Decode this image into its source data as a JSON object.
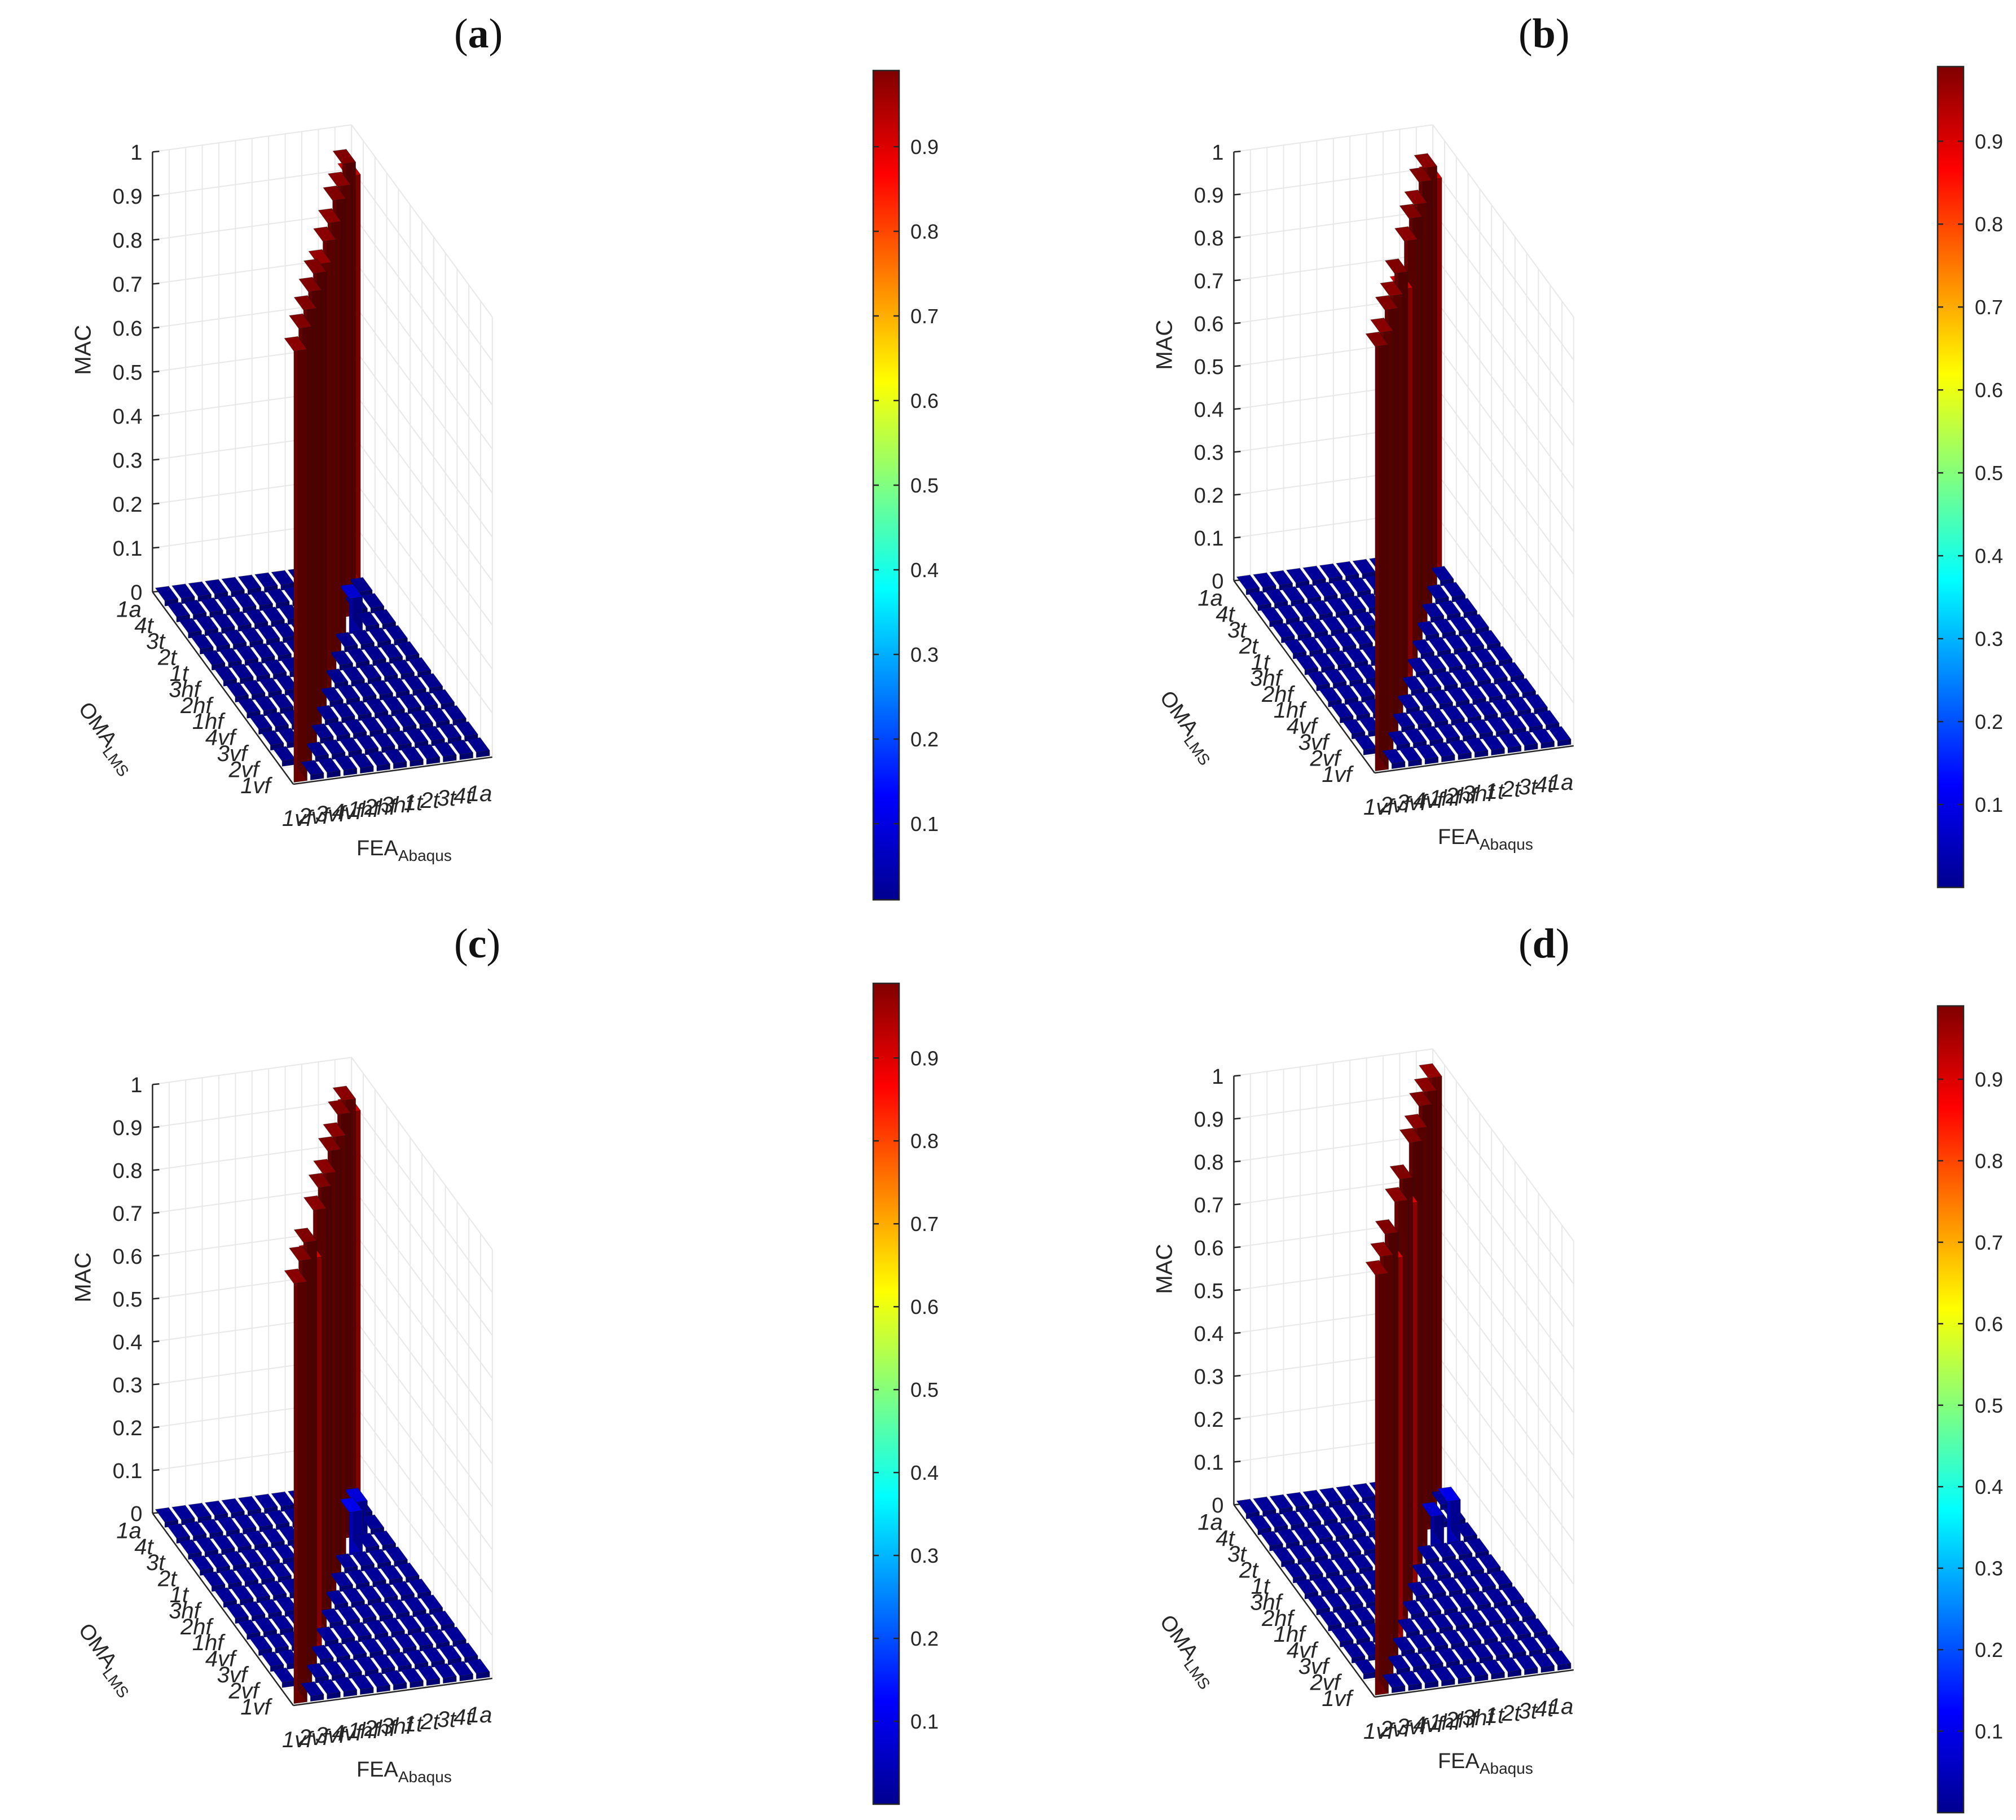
{
  "figure": {
    "panels": [
      "a",
      "b",
      "c",
      "d"
    ]
  },
  "colormap": [
    "#00008f",
    "#0000ff",
    "#0080ff",
    "#00ffff",
    "#80ff80",
    "#ffff00",
    "#ff8000",
    "#ff0000",
    "#800000"
  ],
  "chart_data": [
    {
      "panel": "a",
      "label": "a",
      "type": "bar3d",
      "zlabel": "MAC",
      "xlabel": "FEA",
      "xlabel_sub": "Abaqus",
      "ylabel": "OMA",
      "ylabel_sub": "LMS",
      "x_categories": [
        "1vf",
        "2vf",
        "3vf",
        "4vf",
        "1hf",
        "2hf",
        "3hf",
        "1t",
        "2t",
        "3t",
        "4t",
        "1a"
      ],
      "y_categories": [
        "1vf",
        "2vf",
        "3vf",
        "4vf",
        "1hf",
        "2hf",
        "3hf",
        "1t",
        "2t",
        "3t",
        "4t",
        "1a"
      ],
      "zlim": [
        0,
        1
      ],
      "zticks": [
        "0",
        "0.1",
        "0.2",
        "0.3",
        "0.4",
        "0.5",
        "0.6",
        "0.7",
        "0.8",
        "0.9",
        "1"
      ],
      "colorbar_ticks": [
        "0.1",
        "0.2",
        "0.3",
        "0.4",
        "0.5",
        "0.6",
        "0.7",
        "0.8",
        "0.9"
      ],
      "colorbar_range": [
        0.01,
        0.99
      ],
      "diagonal": [
        0.98,
        0.99,
        0.99,
        0.99,
        0.99,
        0.97,
        0.98,
        0.98,
        0.99,
        0.98,
        0.99,
        0.92
      ],
      "offdiag": [
        {
          "i": 8,
          "j": 9,
          "v": 0.08
        },
        {
          "i": 9,
          "j": 8,
          "v": 0.08
        }
      ]
    },
    {
      "panel": "b",
      "label": "b",
      "type": "bar3d",
      "zlabel": "MAC",
      "xlabel": "FEA",
      "xlabel_sub": "Abaqus",
      "ylabel": "OMA",
      "ylabel_sub": "LMS",
      "x_categories": [
        "1vf",
        "2vf",
        "3vf",
        "4vf",
        "1hf",
        "2hf",
        "3hf",
        "1t",
        "2t",
        "3t",
        "4t",
        "1a"
      ],
      "y_categories": [
        "1vf",
        "2vf",
        "3vf",
        "4vf",
        "1hf",
        "2hf",
        "3hf",
        "1t",
        "2t",
        "3t",
        "4t",
        "1a"
      ],
      "zlim": [
        0,
        1
      ],
      "zticks": [
        "0",
        "0.1",
        "0.2",
        "0.3",
        "0.4",
        "0.5",
        "0.6",
        "0.7",
        "0.8",
        "0.9",
        "1"
      ],
      "colorbar_ticks": [
        "0.1",
        "0.2",
        "0.3",
        "0.4",
        "0.5",
        "0.6",
        "0.7",
        "0.8",
        "0.9"
      ],
      "colorbar_range": [
        0.0,
        0.99
      ],
      "diagonal": [
        0.99,
        0.98,
        0.99,
        0.98,
        0.99,
        0.91,
        0.98,
        0.99,
        0.98,
        0.99,
        0.98,
        0.91
      ],
      "offdiag": []
    },
    {
      "panel": "c",
      "label": "c",
      "type": "bar3d",
      "zlabel": "MAC",
      "xlabel": "FEA",
      "xlabel_sub": "Abaqus",
      "ylabel": "OMA",
      "ylabel_sub": "LMS",
      "x_categories": [
        "1vf",
        "2vf",
        "3vf",
        "4vf",
        "1hf",
        "2hf",
        "3hf",
        "1t",
        "2t",
        "3t",
        "4t",
        "1a"
      ],
      "y_categories": [
        "1vf",
        "2vf",
        "3vf",
        "4vf",
        "1hf",
        "2hf",
        "3hf",
        "1t",
        "2t",
        "3t",
        "4t",
        "1a"
      ],
      "zlim": [
        0,
        1
      ],
      "zticks": [
        "0",
        "0.1",
        "0.2",
        "0.3",
        "0.4",
        "0.5",
        "0.6",
        "0.7",
        "0.8",
        "0.9",
        "1"
      ],
      "colorbar_ticks": [
        "0.1",
        "0.2",
        "0.3",
        "0.4",
        "0.5",
        "0.6",
        "0.7",
        "0.8",
        "0.9"
      ],
      "colorbar_range": [
        0.0,
        0.99
      ],
      "diagonal": [
        0.98,
        0.99,
        0.99,
        0.91,
        0.98,
        0.99,
        0.98,
        0.99,
        0.98,
        0.99,
        0.98,
        0.91
      ],
      "offdiag": [
        {
          "i": 8,
          "j": 9,
          "v": 0.12
        },
        {
          "i": 9,
          "j": 8,
          "v": 0.1
        },
        {
          "i": 10,
          "j": 9,
          "v": 0.08
        }
      ]
    },
    {
      "panel": "d",
      "label": "d",
      "type": "bar3d",
      "zlabel": "MAC",
      "xlabel": "FEA",
      "xlabel_sub": "Abaqus",
      "ylabel": "OMA",
      "ylabel_sub": "LMS",
      "x_categories": [
        "1vf",
        "2vf",
        "3vf",
        "4vf",
        "1hf",
        "2hf",
        "3hf",
        "1t",
        "2t",
        "3t",
        "4t",
        "1a"
      ],
      "y_categories": [
        "1vf",
        "2vf",
        "3vf",
        "4vf",
        "1hf",
        "2hf",
        "3hf",
        "1t",
        "2t",
        "3t",
        "4t",
        "1a"
      ],
      "zlim": [
        0,
        1
      ],
      "zticks": [
        "0",
        "0.1",
        "0.2",
        "0.3",
        "0.4",
        "0.5",
        "0.6",
        "0.7",
        "0.8",
        "0.9",
        "1"
      ],
      "colorbar_ticks": [
        "0.1",
        "0.2",
        "0.3",
        "0.4",
        "0.5",
        "0.6",
        "0.7",
        "0.8",
        "0.9"
      ],
      "colorbar_range": [
        0.0,
        0.99
      ],
      "diagonal": [
        0.98,
        0.98,
        0.99,
        0.89,
        0.98,
        0.99,
        0.89,
        0.99,
        0.98,
        0.99,
        0.98,
        0.97
      ],
      "offdiag": [
        {
          "i": 8,
          "j": 9,
          "v": 0.08
        },
        {
          "i": 9,
          "j": 8,
          "v": 0.07
        },
        {
          "i": 10,
          "j": 8,
          "v": 0.1
        },
        {
          "i": 9,
          "j": 10,
          "v": 0.06
        }
      ]
    }
  ]
}
